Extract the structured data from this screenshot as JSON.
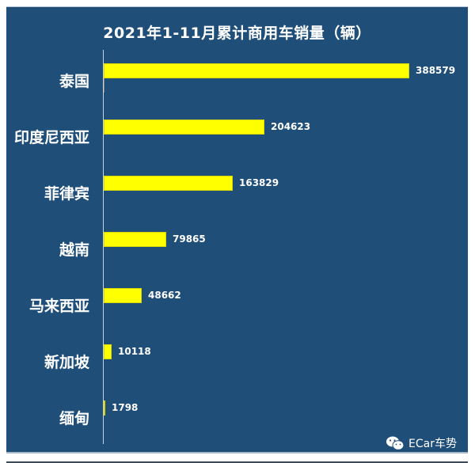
{
  "chart_data": {
    "type": "bar",
    "orientation": "horizontal",
    "title": "2021年1-11月累计商用车销量（辆）",
    "xlabel": "",
    "ylabel": "",
    "categories": [
      "泰国",
      "印度尼西亚",
      "菲律宾",
      "越南",
      "马来西亚",
      "新加坡",
      "缅甸"
    ],
    "values": [
      388579,
      204623,
      163829,
      79865,
      48662,
      10118,
      1798
    ],
    "value_labels": [
      "388579",
      "204623",
      "163829",
      "79865",
      "48662",
      "10118",
      "1798"
    ],
    "series": [
      {
        "name": "商用车销量",
        "color": "#FFFF00",
        "values": [
          388579,
          204623,
          163829,
          79865,
          48662,
          10118,
          1798
        ]
      }
    ],
    "xlim": [
      0,
      388579
    ],
    "grid": false,
    "legend": "none",
    "background": "#1F4E79"
  },
  "chart": {
    "title": "2021年1-11月累计商用车销量（辆）",
    "rows": [
      {
        "label": "泰国",
        "value": "388579"
      },
      {
        "label": "印度尼西亚",
        "value": "204623"
      },
      {
        "label": "菲律宾",
        "value": "163829"
      },
      {
        "label": "越南",
        "value": "79865"
      },
      {
        "label": "马来西亚",
        "value": "48662"
      },
      {
        "label": "新加坡",
        "value": "10118"
      },
      {
        "label": "缅甸",
        "value": "1798"
      }
    ]
  },
  "watermark": {
    "icon": "wechat-icon",
    "text": "ECar车势"
  },
  "colors": {
    "background": "#1F4E79",
    "bar": "#FFFF00",
    "text": "#FFFFFF"
  }
}
